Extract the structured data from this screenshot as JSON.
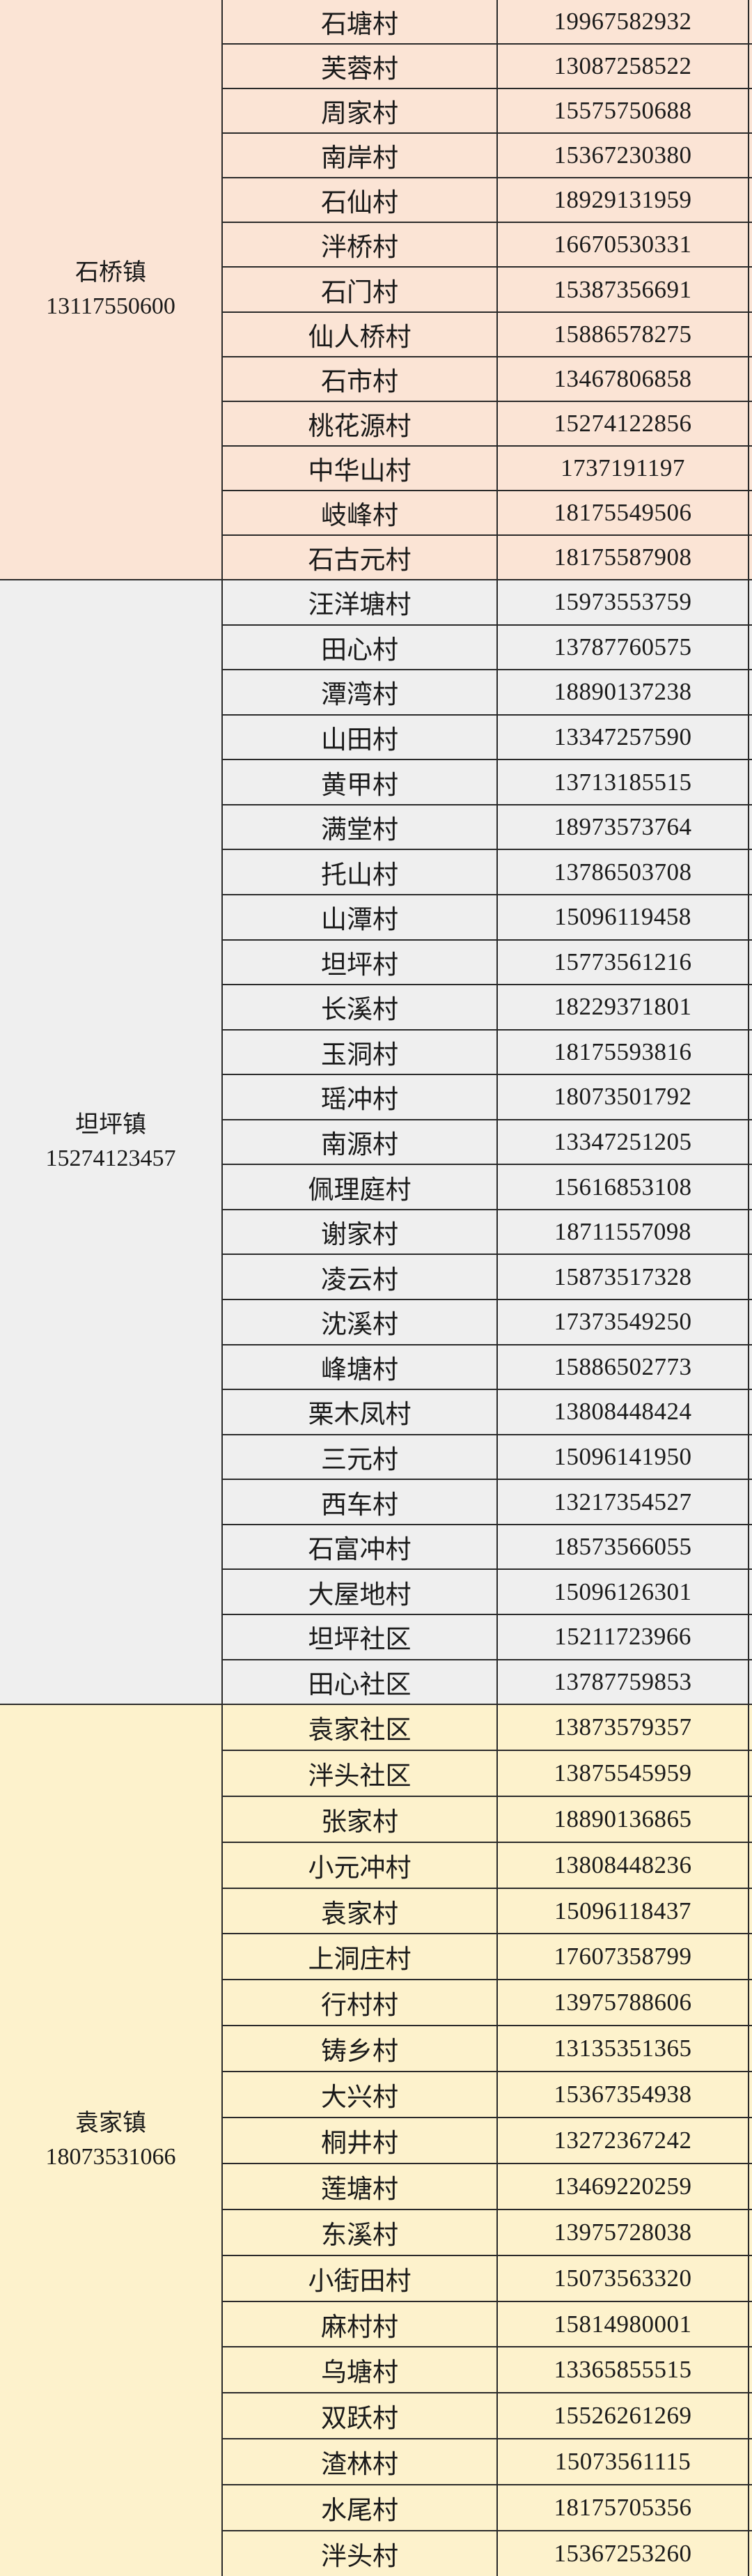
{
  "colors": {
    "shiqiao": "#fbe4d5",
    "tanping": "#efefef",
    "yuanjia": "#fdf2cc",
    "border": "#2a2a2a"
  },
  "sections": [
    {
      "town": "石桥镇",
      "phone": "13117550600",
      "color": "#fbe4d5",
      "villages": [
        {
          "name": "石塘村",
          "phone": "19967582932"
        },
        {
          "name": "芙蓉村",
          "phone": "13087258522"
        },
        {
          "name": "周家村",
          "phone": "15575750688"
        },
        {
          "name": "南岸村",
          "phone": "15367230380"
        },
        {
          "name": "石仙村",
          "phone": "18929131959"
        },
        {
          "name": "泮桥村",
          "phone": "16670530331"
        },
        {
          "name": "石门村",
          "phone": "15387356691"
        },
        {
          "name": "仙人桥村",
          "phone": "15886578275"
        },
        {
          "name": "石市村",
          "phone": "13467806858"
        },
        {
          "name": "桃花源村",
          "phone": "15274122856"
        },
        {
          "name": "中华山村",
          "phone": "1737191197"
        },
        {
          "name": "岐峰村",
          "phone": "18175549506"
        },
        {
          "name": "石古元村",
          "phone": "18175587908"
        }
      ]
    },
    {
      "town": "坦坪镇",
      "phone": "15274123457",
      "color": "#efefef",
      "villages": [
        {
          "name": "汪洋塘村",
          "phone": "15973553759"
        },
        {
          "name": "田心村",
          "phone": "13787760575"
        },
        {
          "name": "潭湾村",
          "phone": "18890137238"
        },
        {
          "name": "山田村",
          "phone": "13347257590"
        },
        {
          "name": "黄甲村",
          "phone": "13713185515"
        },
        {
          "name": "满堂村",
          "phone": "18973573764"
        },
        {
          "name": "托山村",
          "phone": "13786503708"
        },
        {
          "name": "山潭村",
          "phone": "15096119458"
        },
        {
          "name": "坦坪村",
          "phone": "15773561216"
        },
        {
          "name": "长溪村",
          "phone": "18229371801"
        },
        {
          "name": "玉洞村",
          "phone": "18175593816"
        },
        {
          "name": "瑶冲村",
          "phone": "18073501792"
        },
        {
          "name": "南源村",
          "phone": "13347251205"
        },
        {
          "name": "佩理庭村",
          "phone": "15616853108"
        },
        {
          "name": "谢家村",
          "phone": "18711557098"
        },
        {
          "name": "凌云村",
          "phone": "15873517328"
        },
        {
          "name": "沈溪村",
          "phone": "17373549250"
        },
        {
          "name": "峰塘村",
          "phone": "15886502773"
        },
        {
          "name": "栗木凤村",
          "phone": "13808448424"
        },
        {
          "name": "三元村",
          "phone": "15096141950"
        },
        {
          "name": "西车村",
          "phone": "13217354527"
        },
        {
          "name": "石富冲村",
          "phone": "18573566055"
        },
        {
          "name": "大屋地村",
          "phone": "15096126301"
        },
        {
          "name": "坦坪社区",
          "phone": "15211723966"
        },
        {
          "name": "田心社区",
          "phone": "13787759853"
        }
      ]
    },
    {
      "town": "袁家镇",
      "phone": "18073531066",
      "color": "#fdf2cc",
      "villages": [
        {
          "name": "袁家社区",
          "phone": "13873579357"
        },
        {
          "name": "泮头社区",
          "phone": "13875545959"
        },
        {
          "name": "张家村",
          "phone": "18890136865"
        },
        {
          "name": "小元冲村",
          "phone": "13808448236"
        },
        {
          "name": "袁家村",
          "phone": "15096118437"
        },
        {
          "name": "上洞庄村",
          "phone": "17607358799"
        },
        {
          "name": "行村村",
          "phone": "13975788606"
        },
        {
          "name": "铸乡村",
          "phone": "13135351365"
        },
        {
          "name": "大兴村",
          "phone": "15367354938"
        },
        {
          "name": "桐井村",
          "phone": "13272367242"
        },
        {
          "name": "莲塘村",
          "phone": "13469220259"
        },
        {
          "name": "东溪村",
          "phone": "13975728038"
        },
        {
          "name": "小街田村",
          "phone": "15073563320"
        },
        {
          "name": "麻村村",
          "phone": "15814980001"
        },
        {
          "name": "乌塘村",
          "phone": "13365855515"
        },
        {
          "name": "双跃村",
          "phone": "15526261269"
        },
        {
          "name": "渣林村",
          "phone": "15073561115"
        },
        {
          "name": "水尾村",
          "phone": "18175705356"
        },
        {
          "name": "泮头村",
          "phone": "15367253260"
        }
      ]
    }
  ]
}
